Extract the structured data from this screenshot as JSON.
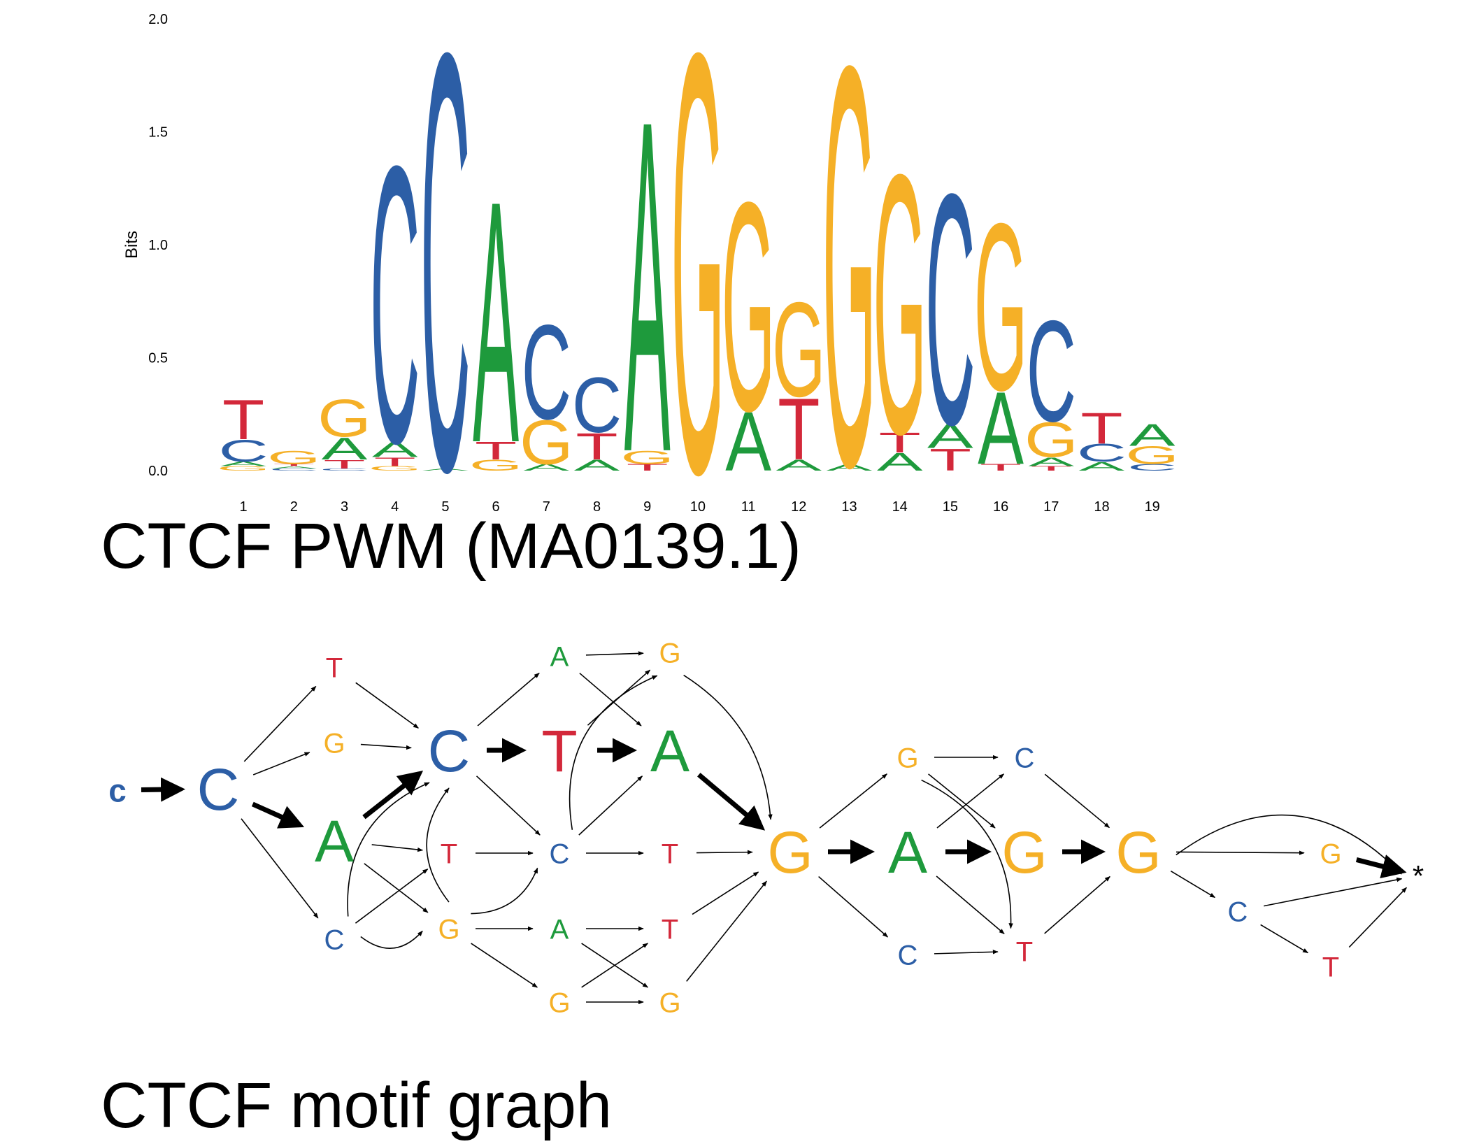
{
  "colors": {
    "A": "#1e9a3c",
    "C": "#2c5ea6",
    "G": "#f5b027",
    "T": "#d3283a",
    "edge": "#000000"
  },
  "pwm": {
    "title": "CTCF PWM (MA0139.1)",
    "ylabel": "Bits",
    "ylim": [
      0,
      2
    ],
    "yticks": [
      "0.0",
      "0.5",
      "1.0",
      "1.5",
      "2.0"
    ],
    "positions": [
      "1",
      "2",
      "3",
      "4",
      "5",
      "6",
      "7",
      "8",
      "9",
      "10",
      "11",
      "12",
      "13",
      "14",
      "15",
      "16",
      "17",
      "18",
      "19"
    ]
  },
  "chart_data": {
    "type": "sequence-logo",
    "title": "CTCF PWM (MA0139.1)",
    "ylabel": "Bits",
    "ylim": [
      0,
      2
    ],
    "columns": [
      [
        [
          "G",
          0.02
        ],
        [
          "A",
          0.02
        ],
        [
          "C",
          0.1
        ],
        [
          "T",
          0.18
        ]
      ],
      [
        [
          "C",
          0.01
        ],
        [
          "A",
          0.01
        ],
        [
          "T",
          0.01
        ],
        [
          "G",
          0.06
        ]
      ],
      [
        [
          "C",
          0.01
        ],
        [
          "T",
          0.04
        ],
        [
          "A",
          0.1
        ],
        [
          "G",
          0.17
        ]
      ],
      [
        [
          "G",
          0.02
        ],
        [
          "T",
          0.04
        ],
        [
          "A",
          0.07
        ],
        [
          "C",
          1.26
        ]
      ],
      [
        [
          "A",
          0.01
        ],
        [
          "C",
          1.9
        ]
      ],
      [
        [
          "G",
          0.05
        ],
        [
          "T",
          0.08
        ],
        [
          "A",
          1.1
        ]
      ],
      [
        [
          "A",
          0.03
        ],
        [
          "G",
          0.2
        ],
        [
          "C",
          0.43
        ]
      ],
      [
        [
          "A",
          0.05
        ],
        [
          "T",
          0.12
        ],
        [
          "C",
          0.25
        ]
      ],
      [
        [
          "T",
          0.03
        ],
        [
          "G",
          0.06
        ],
        [
          "A",
          1.51
        ]
      ],
      [
        [
          "G",
          1.91
        ]
      ],
      [
        [
          "A",
          0.27
        ],
        [
          "G",
          0.95
        ]
      ],
      [
        [
          "A",
          0.05
        ],
        [
          "T",
          0.28
        ],
        [
          "G",
          0.43
        ]
      ],
      [
        [
          "A",
          0.03
        ],
        [
          "G",
          1.82
        ]
      ],
      [
        [
          "A",
          0.08
        ],
        [
          "T",
          0.09
        ],
        [
          "G",
          1.18
        ]
      ],
      [
        [
          "T",
          0.1
        ],
        [
          "A",
          0.11
        ],
        [
          "C",
          1.05
        ]
      ],
      [
        [
          "T",
          0.03
        ],
        [
          "A",
          0.33
        ],
        [
          "G",
          0.76
        ]
      ],
      [
        [
          "T",
          0.02
        ],
        [
          "A",
          0.04
        ],
        [
          "G",
          0.16
        ],
        [
          "C",
          0.46
        ]
      ],
      [
        [
          "A",
          0.04
        ],
        [
          "C",
          0.08
        ],
        [
          "T",
          0.14
        ]
      ],
      [
        [
          "C",
          0.03
        ],
        [
          "G",
          0.08
        ],
        [
          "A",
          0.1
        ]
      ]
    ]
  },
  "graph": {
    "title": "CTCF motif graph",
    "nodes": [
      {
        "id": "c0",
        "label": "c",
        "base": "C",
        "size": "small"
      },
      {
        "id": "C1",
        "label": "C",
        "base": "C",
        "size": "large"
      },
      {
        "id": "T2",
        "label": "T",
        "base": "T",
        "size": "small"
      },
      {
        "id": "G2",
        "label": "G",
        "base": "G",
        "size": "small"
      },
      {
        "id": "A2",
        "label": "A",
        "base": "A",
        "size": "large"
      },
      {
        "id": "C2",
        "label": "C",
        "base": "C",
        "size": "small"
      },
      {
        "id": "C3",
        "label": "C",
        "base": "C",
        "size": "large"
      },
      {
        "id": "T3",
        "label": "T",
        "base": "T",
        "size": "small"
      },
      {
        "id": "G3",
        "label": "G",
        "base": "G",
        "size": "small"
      },
      {
        "id": "T4",
        "label": "T",
        "base": "T",
        "size": "large"
      },
      {
        "id": "C4",
        "label": "C",
        "base": "C",
        "size": "small"
      },
      {
        "id": "A4a",
        "label": "A",
        "base": "A",
        "size": "small"
      },
      {
        "id": "A4b",
        "label": "A",
        "base": "A",
        "size": "small"
      },
      {
        "id": "G4",
        "label": "G",
        "base": "G",
        "size": "small"
      },
      {
        "id": "G5a",
        "label": "G",
        "base": "G",
        "size": "small"
      },
      {
        "id": "A5",
        "label": "A",
        "base": "A",
        "size": "large"
      },
      {
        "id": "T5a",
        "label": "T",
        "base": "T",
        "size": "small"
      },
      {
        "id": "T5b",
        "label": "T",
        "base": "T",
        "size": "small"
      },
      {
        "id": "G5b",
        "label": "G",
        "base": "G",
        "size": "small"
      },
      {
        "id": "G6",
        "label": "G",
        "base": "G",
        "size": "large"
      },
      {
        "id": "A7",
        "label": "A",
        "base": "A",
        "size": "large"
      },
      {
        "id": "G7",
        "label": "G",
        "base": "G",
        "size": "small"
      },
      {
        "id": "C7",
        "label": "C",
        "base": "C",
        "size": "small"
      },
      {
        "id": "G8",
        "label": "G",
        "base": "G",
        "size": "large"
      },
      {
        "id": "C8",
        "label": "C",
        "base": "C",
        "size": "small"
      },
      {
        "id": "T8",
        "label": "T",
        "base": "T",
        "size": "small"
      },
      {
        "id": "G9",
        "label": "G",
        "base": "G",
        "size": "large"
      },
      {
        "id": "G10",
        "label": "G",
        "base": "G",
        "size": "small"
      },
      {
        "id": "C10",
        "label": "C",
        "base": "C",
        "size": "small"
      },
      {
        "id": "T10",
        "label": "T",
        "base": "T",
        "size": "small"
      },
      {
        "id": "end",
        "label": "*",
        "base": "end",
        "size": "small"
      }
    ],
    "edges": [
      {
        "from": "c0",
        "to": "C1",
        "weight": "bold"
      },
      {
        "from": "C1",
        "to": "T2"
      },
      {
        "from": "C1",
        "to": "G2"
      },
      {
        "from": "C1",
        "to": "A2",
        "weight": "bold"
      },
      {
        "from": "C1",
        "to": "C2"
      },
      {
        "from": "T2",
        "to": "C3"
      },
      {
        "from": "G2",
        "to": "C3"
      },
      {
        "from": "A2",
        "to": "C3",
        "weight": "bold"
      },
      {
        "from": "A2",
        "to": "T3"
      },
      {
        "from": "A2",
        "to": "G3"
      },
      {
        "from": "C2",
        "to": "C3"
      },
      {
        "from": "C2",
        "to": "T3"
      },
      {
        "from": "C2",
        "to": "G3"
      },
      {
        "from": "G3",
        "to": "C3"
      },
      {
        "from": "C3",
        "to": "T4",
        "weight": "bold"
      },
      {
        "from": "C3",
        "to": "A4a"
      },
      {
        "from": "C3",
        "to": "C4"
      },
      {
        "from": "T3",
        "to": "C4"
      },
      {
        "from": "G3",
        "to": "C4"
      },
      {
        "from": "G3",
        "to": "A4b"
      },
      {
        "from": "G3",
        "to": "G4"
      },
      {
        "from": "G3",
        "to": "C3"
      },
      {
        "from": "T4",
        "to": "A5",
        "weight": "bold"
      },
      {
        "from": "T4",
        "to": "G5a"
      },
      {
        "from": "A4a",
        "to": "G5a"
      },
      {
        "from": "A4a",
        "to": "A5"
      },
      {
        "from": "C4",
        "to": "T5a"
      },
      {
        "from": "C4",
        "to": "A5"
      },
      {
        "from": "C4",
        "to": "G5a"
      },
      {
        "from": "A4b",
        "to": "T5b"
      },
      {
        "from": "A4b",
        "to": "G5b"
      },
      {
        "from": "G4",
        "to": "G5b"
      },
      {
        "from": "G4",
        "to": "T5b"
      },
      {
        "from": "A5",
        "to": "G6",
        "weight": "bold"
      },
      {
        "from": "G5a",
        "to": "G6"
      },
      {
        "from": "T5a",
        "to": "G6"
      },
      {
        "from": "T5b",
        "to": "G6"
      },
      {
        "from": "G5b",
        "to": "G6"
      },
      {
        "from": "G6",
        "to": "A7",
        "weight": "bold"
      },
      {
        "from": "G6",
        "to": "G7"
      },
      {
        "from": "G6",
        "to": "C7"
      },
      {
        "from": "A7",
        "to": "G8",
        "weight": "bold"
      },
      {
        "from": "A7",
        "to": "T8"
      },
      {
        "from": "A7",
        "to": "C8"
      },
      {
        "from": "G7",
        "to": "C8"
      },
      {
        "from": "G7",
        "to": "G8"
      },
      {
        "from": "G7",
        "to": "T8"
      },
      {
        "from": "C7",
        "to": "T8"
      },
      {
        "from": "C8",
        "to": "G9"
      },
      {
        "from": "G8",
        "to": "G9",
        "weight": "bold"
      },
      {
        "from": "T8",
        "to": "G9"
      },
      {
        "from": "G9",
        "to": "G10"
      },
      {
        "from": "G9",
        "to": "C10"
      },
      {
        "from": "G9",
        "to": "end"
      },
      {
        "from": "G10",
        "to": "end",
        "weight": "bold"
      },
      {
        "from": "C10",
        "to": "end"
      },
      {
        "from": "C10",
        "to": "T10"
      },
      {
        "from": "T10",
        "to": "end"
      }
    ]
  }
}
